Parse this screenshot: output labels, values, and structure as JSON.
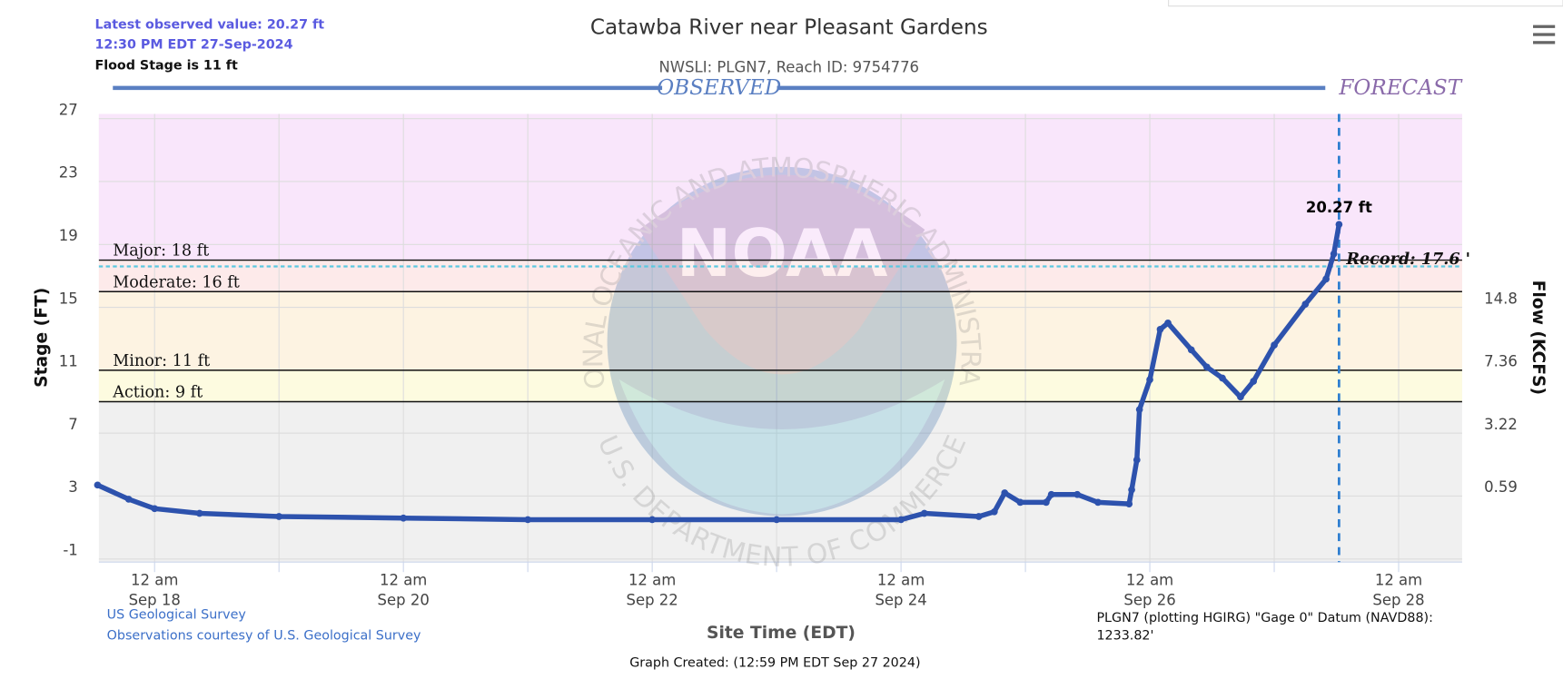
{
  "chart_data": {
    "type": "line",
    "title": "Catawba River near Pleasant Gardens",
    "subtitle": "NWSLI: PLGN7, Reach ID: 9754776",
    "latest_observed": "Latest observed value: 20.27 ft",
    "latest_time": "12:30 PM EDT 27-Sep-2024",
    "flood_stage_note": "Flood Stage is 11 ft",
    "observed_label": "OBSERVED",
    "forecast_label": "FORECAST",
    "forecast_start": "Sep 27 12:30",
    "y_label": "Stage (FT)",
    "y2_label": "Flow (KCFS)",
    "x_label": "Site Time (EDT)",
    "credits": [
      "US Geological Survey",
      "Observations courtesy of U.S. Geological Survey"
    ],
    "datum_note": [
      "PLGN7 (plotting HGIRG) \"Gage 0\" Datum (NAVD88):",
      "1233.82'"
    ],
    "created": "Graph Created: (12:59 PM EDT Sep 27 2024)",
    "watermark": {
      "logo": "NOAA",
      "top": "NATIONAL OCEANIC AND ATMOSPHERIC ADMINISTRATION",
      "bottom": "U.S. DEPARTMENT OF COMMERCE"
    },
    "xlim": [
      "Sep 17 13:15",
      "Sep 28 12:15"
    ],
    "xticks": [
      {
        "value": "Sep 18 00:00",
        "label": "12 am",
        "date": "Sep 18"
      },
      "Sep 19 00:00",
      {
        "value": "Sep 20 00:00",
        "label": "12 am",
        "date": "Sep 20"
      },
      "Sep 21 00:00",
      {
        "value": "Sep 22 00:00",
        "label": "12 am",
        "date": "Sep 22"
      },
      "Sep 23 00:00",
      {
        "value": "Sep 24 00:00",
        "label": "12 am",
        "date": "Sep 24"
      },
      "Sep 25 00:00",
      {
        "value": "Sep 26 00:00",
        "label": "12 am",
        "date": "Sep 26"
      },
      "Sep 27 00:00",
      {
        "value": "Sep 28 00:00",
        "label": "12 am",
        "date": "Sep 28"
      }
    ],
    "ylim": [
      -1.2,
      27.3
    ],
    "yticks": [
      -1,
      3,
      7,
      11,
      15,
      19,
      23,
      27
    ],
    "y2ticks": [
      {
        "value": 0.59,
        "stage": 3
      },
      {
        "value": 3.22,
        "stage": 7
      },
      {
        "value": 7.36,
        "stage": 11
      },
      {
        "value": 14.8,
        "stage": 15
      }
    ],
    "grid": true,
    "flood_levels": [
      {
        "label": "Major: 18 ft",
        "value": 18,
        "color": "#f9e6fb"
      },
      {
        "label": "Moderate: 16 ft",
        "value": 16,
        "color": "#fdeaea"
      },
      {
        "label": "Minor: 11 ft",
        "value": 11,
        "color": "#fdf3e2"
      },
      {
        "label": "Action: 9 ft",
        "value": 9,
        "color": "#fdfbe0"
      }
    ],
    "below_action_color": "#f0f0f0",
    "record": {
      "label": "Record: 17.6 '",
      "value": 17.6
    },
    "series": [
      {
        "name": "Observed",
        "color": "#2d52ad",
        "x": [
          "Sep 17 13:00",
          "Sep 17 19:00",
          "Sep 18 00:00",
          "Sep 18 08:40",
          "Sep 19 00:00",
          "Sep 20 00:00",
          "Sep 21 00:00",
          "Sep 22 00:00",
          "Sep 23 00:00",
          "Sep 24 00:00",
          "Sep 24 04:30",
          "Sep 24 15:00",
          "Sep 24 18:00",
          "Sep 24 20:00",
          "Sep 24 23:00",
          "Sep 25 04:00",
          "Sep 25 05:00",
          "Sep 25 10:00",
          "Sep 25 14:00",
          "Sep 25 20:00",
          "Sep 25 20:30",
          "Sep 25 21:30",
          "Sep 25 22:00",
          "Sep 26 00:00",
          "Sep 26 02:00",
          "Sep 26 03:30",
          "Sep 26 08:00",
          "Sep 26 11:00",
          "Sep 26 14:00",
          "Sep 26 17:30",
          "Sep 26 20:00",
          "Sep 27 00:00",
          "Sep 27 06:00",
          "Sep 27 10:00",
          "Sep 27 11:30",
          "Sep 27 12:30"
        ],
        "values": [
          3.7,
          2.8,
          2.2,
          1.9,
          1.7,
          1.6,
          1.5,
          1.5,
          1.5,
          1.5,
          1.9,
          1.7,
          2.0,
          3.2,
          2.6,
          2.6,
          3.1,
          3.1,
          2.6,
          2.5,
          3.4,
          5.3,
          8.5,
          10.4,
          13.6,
          14.0,
          12.3,
          11.2,
          10.5,
          9.3,
          10.3,
          12.6,
          15.2,
          16.8,
          18.4,
          20.27
        ],
        "value_labels": [
          null,
          null,
          null,
          null,
          null,
          null,
          null,
          null,
          null,
          null,
          null,
          null,
          null,
          null,
          null,
          null,
          null,
          null,
          null,
          null,
          null,
          null,
          null,
          null,
          null,
          null,
          null,
          null,
          null,
          null,
          null,
          null,
          null,
          null,
          null,
          "20.27 ft"
        ]
      }
    ]
  }
}
